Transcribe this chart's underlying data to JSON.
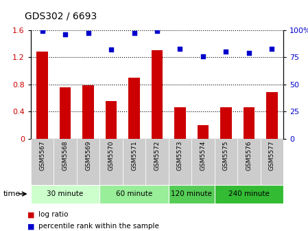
{
  "title": "GDS302 / 6693",
  "samples": [
    "GSM5567",
    "GSM5568",
    "GSM5569",
    "GSM5570",
    "GSM5571",
    "GSM5572",
    "GSM5573",
    "GSM5574",
    "GSM5575",
    "GSM5576",
    "GSM5577"
  ],
  "log_ratio": [
    1.28,
    0.76,
    0.79,
    0.55,
    0.9,
    1.3,
    0.46,
    0.2,
    0.46,
    0.46,
    0.68
  ],
  "percentile": [
    99,
    96,
    97,
    82,
    97,
    99,
    83,
    76,
    80,
    79,
    83
  ],
  "bar_color": "#cc0000",
  "dot_color": "#0000cc",
  "ylim_left": [
    0,
    1.6
  ],
  "ylim_right": [
    0,
    100
  ],
  "yticks_left": [
    0,
    0.4,
    0.8,
    1.2,
    1.6
  ],
  "yticks_right": [
    0,
    25,
    50,
    75,
    100
  ],
  "ytick_labels_left": [
    "0",
    "0.4",
    "0.8",
    "1.2",
    "1.6"
  ],
  "ytick_labels_right": [
    "0",
    "25",
    "50",
    "75",
    "100%"
  ],
  "groups": [
    {
      "label": "30 minute",
      "start": 0,
      "end": 3,
      "color": "#ccffcc"
    },
    {
      "label": "60 minute",
      "start": 3,
      "end": 6,
      "color": "#99ee99"
    },
    {
      "label": "120 minute",
      "start": 6,
      "end": 8,
      "color": "#55cc55"
    },
    {
      "label": "240 minute",
      "start": 8,
      "end": 11,
      "color": "#33bb33"
    }
  ],
  "time_label": "time",
  "legend_bar_label": "log ratio",
  "legend_dot_label": "percentile rank within the sample",
  "bg_color": "#ffffff",
  "tick_label_color_left": "#cc0000",
  "tick_label_color_right": "#0000cc",
  "bar_width": 0.5,
  "xtick_bg_color": "#cccccc"
}
